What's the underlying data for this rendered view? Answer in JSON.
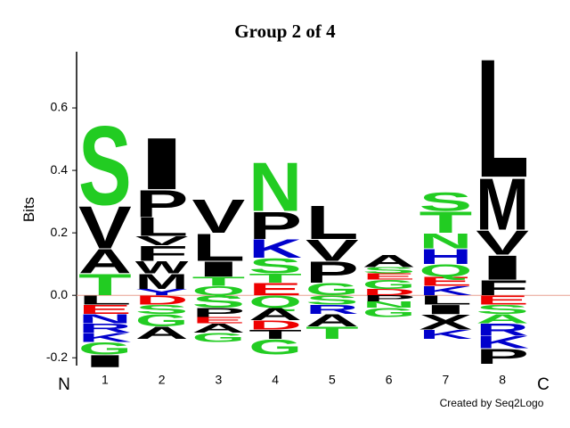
{
  "chart_data": {
    "type": "logo",
    "title": "Group 2 of 4",
    "ylabel": "Bits",
    "start_label": "N",
    "end_label": "C",
    "credit": "Created by Seq2Logo",
    "categories": [
      "1",
      "2",
      "3",
      "4",
      "5",
      "6",
      "7",
      "8"
    ],
    "ylim": [
      -0.225,
      0.78
    ],
    "yticks": [
      {
        "value": -0.2,
        "label": "-0.2"
      },
      {
        "value": 0,
        "label": "0.0"
      },
      {
        "value": 0.2,
        "label": "0.2"
      },
      {
        "value": 0.4,
        "label": "0.4"
      },
      {
        "value": 0.6,
        "label": "0.6"
      }
    ],
    "columns": [
      [
        {
          "letter": "T",
          "value": 0.07,
          "color": "#22cc22"
        },
        {
          "letter": "A",
          "value": 0.08,
          "color": "#000000"
        },
        {
          "letter": "V",
          "value": 0.14,
          "color": "#000000"
        },
        {
          "letter": "S",
          "value": 0.26,
          "color": "#22cc22"
        },
        {
          "letter": "L",
          "value": -0.03,
          "color": "#000000"
        },
        {
          "letter": "E",
          "value": -0.03,
          "color": "#ee0000"
        },
        {
          "letter": "N",
          "value": -0.03,
          "color": "#0000cc"
        },
        {
          "letter": "R",
          "value": -0.03,
          "color": "#0000cc"
        },
        {
          "letter": "K",
          "value": -0.03,
          "color": "#0000cc"
        },
        {
          "letter": "G",
          "value": -0.04,
          "color": "#22cc22"
        },
        {
          "letter": "I",
          "value": -0.04,
          "color": "#000000"
        }
      ],
      [
        {
          "letter": "Y",
          "value": 0.02,
          "color": "#0000cc"
        },
        {
          "letter": "M",
          "value": 0.05,
          "color": "#000000"
        },
        {
          "letter": "W",
          "value": 0.04,
          "color": "#000000"
        },
        {
          "letter": "F",
          "value": 0.05,
          "color": "#000000"
        },
        {
          "letter": "V",
          "value": 0.03,
          "color": "#000000"
        },
        {
          "letter": "L",
          "value": 0.06,
          "color": "#000000"
        },
        {
          "letter": "P",
          "value": 0.09,
          "color": "#000000"
        },
        {
          "letter": "I",
          "value": 0.17,
          "color": "#000000"
        },
        {
          "letter": "D",
          "value": -0.03,
          "color": "#ee0000"
        },
        {
          "letter": "S",
          "value": -0.03,
          "color": "#22cc22"
        },
        {
          "letter": "G",
          "value": -0.04,
          "color": "#22cc22"
        },
        {
          "letter": "A",
          "value": -0.04,
          "color": "#000000"
        }
      ],
      [
        {
          "letter": "Q",
          "value": 0.03,
          "color": "#22cc22"
        },
        {
          "letter": "T",
          "value": 0.03,
          "color": "#22cc22"
        },
        {
          "letter": "I",
          "value": 0.05,
          "color": "#000000"
        },
        {
          "letter": "L",
          "value": 0.09,
          "color": "#000000"
        },
        {
          "letter": "V",
          "value": 0.11,
          "color": "#000000"
        },
        {
          "letter": "S",
          "value": -0.04,
          "color": "#22cc22"
        },
        {
          "letter": "P",
          "value": -0.03,
          "color": "#000000"
        },
        {
          "letter": "E",
          "value": -0.02,
          "color": "#ee0000"
        },
        {
          "letter": "A",
          "value": -0.03,
          "color": "#000000"
        },
        {
          "letter": "G",
          "value": -0.03,
          "color": "#22cc22"
        }
      ],
      [
        {
          "letter": "E",
          "value": 0.04,
          "color": "#ee0000"
        },
        {
          "letter": "T",
          "value": 0.03,
          "color": "#22cc22"
        },
        {
          "letter": "S",
          "value": 0.05,
          "color": "#22cc22"
        },
        {
          "letter": "K",
          "value": 0.06,
          "color": "#0000cc"
        },
        {
          "letter": "P",
          "value": 0.09,
          "color": "#000000"
        },
        {
          "letter": "N",
          "value": 0.16,
          "color": "#22cc22"
        },
        {
          "letter": "Q",
          "value": -0.04,
          "color": "#22cc22"
        },
        {
          "letter": "A",
          "value": -0.04,
          "color": "#000000"
        },
        {
          "letter": "D",
          "value": -0.03,
          "color": "#ee0000"
        },
        {
          "letter": "T",
          "value": -0.03,
          "color": "#000000"
        },
        {
          "letter": "G",
          "value": -0.05,
          "color": "#22cc22"
        }
      ],
      [
        {
          "letter": "G",
          "value": 0.04,
          "color": "#22cc22"
        },
        {
          "letter": "P",
          "value": 0.07,
          "color": "#000000"
        },
        {
          "letter": "V",
          "value": 0.07,
          "color": "#000000"
        },
        {
          "letter": "L",
          "value": 0.11,
          "color": "#000000"
        },
        {
          "letter": "S",
          "value": -0.03,
          "color": "#22cc22"
        },
        {
          "letter": "R",
          "value": -0.03,
          "color": "#0000cc"
        },
        {
          "letter": "A",
          "value": -0.04,
          "color": "#000000"
        },
        {
          "letter": "T",
          "value": -0.04,
          "color": "#22cc22"
        }
      ],
      [
        {
          "letter": "D",
          "value": 0.02,
          "color": "#ee0000"
        },
        {
          "letter": "G",
          "value": 0.03,
          "color": "#22cc22"
        },
        {
          "letter": "E",
          "value": 0.02,
          "color": "#ee0000"
        },
        {
          "letter": "S",
          "value": 0.02,
          "color": "#22cc22"
        },
        {
          "letter": "A",
          "value": 0.04,
          "color": "#000000"
        },
        {
          "letter": "P",
          "value": -0.02,
          "color": "#000000"
        },
        {
          "letter": "N",
          "value": -0.02,
          "color": "#22cc22"
        },
        {
          "letter": "G",
          "value": -0.03,
          "color": "#22cc22"
        }
      ],
      [
        {
          "letter": "K",
          "value": 0.03,
          "color": "#0000cc"
        },
        {
          "letter": "E",
          "value": 0.03,
          "color": "#ee0000"
        },
        {
          "letter": "Q",
          "value": 0.04,
          "color": "#22cc22"
        },
        {
          "letter": "H",
          "value": 0.05,
          "color": "#0000cc"
        },
        {
          "letter": "N",
          "value": 0.05,
          "color": "#22cc22"
        },
        {
          "letter": "T",
          "value": 0.07,
          "color": "#22cc22"
        },
        {
          "letter": "S",
          "value": 0.06,
          "color": "#22cc22"
        },
        {
          "letter": "L",
          "value": -0.03,
          "color": "#000000"
        },
        {
          "letter": "I",
          "value": -0.03,
          "color": "#000000"
        },
        {
          "letter": "X",
          "value": -0.05,
          "color": "#000000"
        },
        {
          "letter": "K",
          "value": -0.03,
          "color": "#0000cc"
        }
      ],
      [
        {
          "letter": "F",
          "value": 0.05,
          "color": "#000000"
        },
        {
          "letter": "I",
          "value": 0.08,
          "color": "#000000"
        },
        {
          "letter": "V",
          "value": 0.08,
          "color": "#000000"
        },
        {
          "letter": "M",
          "value": 0.17,
          "color": "#000000"
        },
        {
          "letter": "L",
          "value": 0.39,
          "color": "#000000"
        },
        {
          "letter": "E",
          "value": -0.03,
          "color": "#ee0000"
        },
        {
          "letter": "S",
          "value": -0.03,
          "color": "#22cc22"
        },
        {
          "letter": "A",
          "value": -0.03,
          "color": "#22cc22"
        },
        {
          "letter": "R",
          "value": -0.04,
          "color": "#0000cc"
        },
        {
          "letter": "K",
          "value": -0.04,
          "color": "#0000cc"
        },
        {
          "letter": "P",
          "value": -0.05,
          "color": "#000000"
        }
      ]
    ]
  }
}
